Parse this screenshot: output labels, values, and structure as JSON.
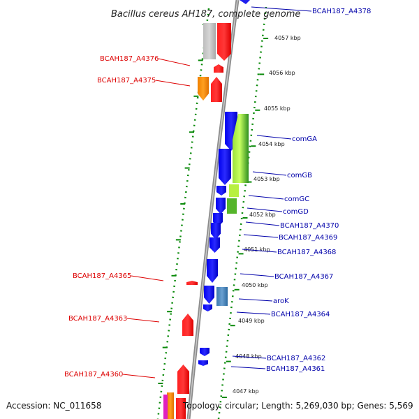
{
  "title": "Bacillus cereus AH187, complete genome",
  "footer": {
    "accession": "Accession: NC_011658",
    "summary": "Topology: circular; Length: 5,269,030 bp; Genes: 5,569"
  },
  "colors": {
    "left_label": "#dd0000",
    "right_label": "#0000aa",
    "tick": "#0a8a0a",
    "backbone": "#8c8c8c"
  },
  "ruler_labels": [
    "4057 kbp",
    "4056 kbp",
    "4055 kbp",
    "4054 kbp",
    "4053 kbp",
    "4052 kbp",
    "4051 kbp",
    "4050 kbp",
    "4049 kbp",
    "4048 kbp",
    "4047 kbp"
  ],
  "left_labels": [
    "BCAH187_A4376",
    "BCAH187_A4375",
    "BCAH187_A4365",
    "BCAH187_A4363",
    "BCAH187_A4360"
  ],
  "right_labels": [
    "BCAH187_A4378",
    "comGA",
    "comGB",
    "comGC",
    "comGD",
    "BCAH187_A4370",
    "BCAH187_A4369",
    "BCAH187_A4368",
    "BCAH187_A4367",
    "aroK",
    "BCAH187_A4364",
    "BCAH187_A4362",
    "BCAH187_A4361"
  ]
}
